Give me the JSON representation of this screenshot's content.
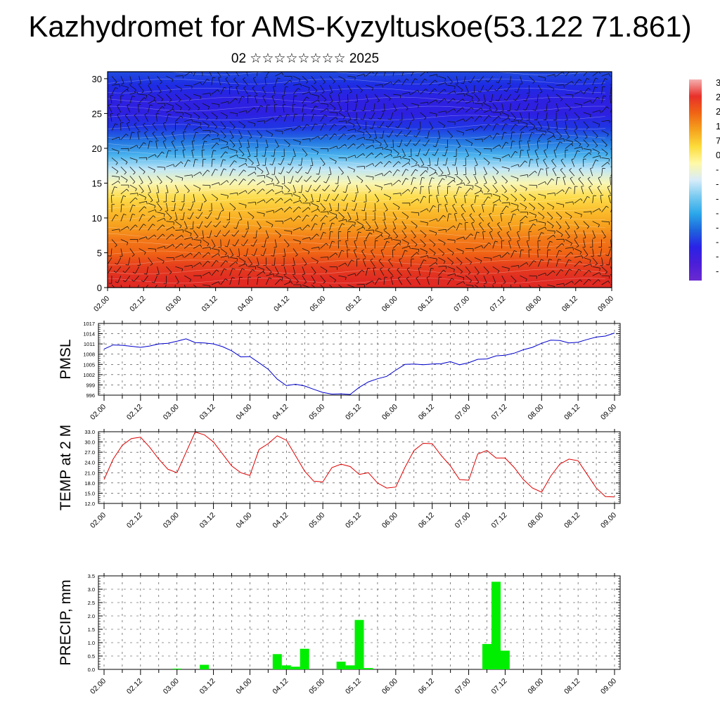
{
  "header": {
    "title": "Kazhydromet for AMS-Kyzyltuskoe(53.122 71.861)",
    "subtitle": "02 ☆☆☆☆☆☆☆☆ 2025"
  },
  "chart_data": [
    {
      "type": "heatmap",
      "title": "",
      "xlabel": "",
      "ylabel": "",
      "ylim": [
        0,
        31
      ],
      "yticks": [
        "0",
        "5",
        "10",
        "15",
        "20",
        "25",
        "30"
      ],
      "xticks": [
        "02.00",
        "02.12",
        "03.00",
        "03.12",
        "04.00",
        "04.12",
        "05.00",
        "05.12",
        "06.00",
        "06.12",
        "07.00",
        "07.12",
        "08.00",
        "08.12",
        "09.00"
      ],
      "y_levels": [
        1,
        3,
        5,
        7,
        9,
        11,
        13,
        15,
        17,
        19,
        21,
        23,
        25,
        27,
        29,
        31
      ],
      "approx_values_by_level": [
        20,
        18,
        14,
        12,
        8,
        5,
        1,
        -5,
        -12,
        -20,
        -26,
        -32,
        -36,
        -36,
        -33,
        -30
      ],
      "colorbar_labels": [
        "3",
        "2",
        "2",
        "1",
        "7",
        "0",
        "-",
        "-",
        "-",
        "-",
        "-",
        "-",
        "-",
        "-"
      ],
      "colorbar_colors": [
        "#f4b0b0",
        "#e8302a",
        "#f06414",
        "#f5a21e",
        "#fcdc3a",
        "#fff9a8",
        "#d8ecfa",
        "#78caf0",
        "#2ba8ea",
        "#1e64dc",
        "#2a22e6",
        "#4b1ed8",
        "#6a2ad0"
      ],
      "overlay": "wind barbs"
    },
    {
      "type": "line",
      "ylabel": "PMSL",
      "ylim": [
        996,
        1017
      ],
      "yticks": [
        "996",
        "999",
        "1002",
        "1005",
        "1008",
        "1011",
        "1014",
        "1017"
      ],
      "xticks": [
        "02.00",
        "02.12",
        "03.00",
        "03.12",
        "04.00",
        "04.12",
        "05.00",
        "05.12",
        "06.00",
        "06.12",
        "07.00",
        "07.12",
        "08.00",
        "08.12",
        "09.00"
      ],
      "x": [
        0,
        3,
        6,
        9,
        12,
        15,
        18,
        21,
        24,
        27,
        30,
        33,
        36,
        39,
        42,
        45,
        48,
        51,
        54,
        57,
        60,
        63,
        66,
        69,
        72,
        75,
        78,
        81,
        84,
        87,
        90,
        93,
        96,
        99,
        102,
        105,
        108,
        111,
        114,
        117,
        120,
        123,
        126,
        129,
        132,
        135,
        138,
        141,
        144,
        147,
        150,
        153,
        156,
        159,
        162,
        165,
        168
      ],
      "series": [
        {
          "color": "#0000cc",
          "values": [
            1009.5,
            1010.7,
            1010.6,
            1010.3,
            1010.0,
            1010.4,
            1011.0,
            1011.2,
            1011.8,
            1012.5,
            1011.4,
            1011.3,
            1011.0,
            1010.2,
            1009.0,
            1007.2,
            1007.3,
            1005.5,
            1003.6,
            1000.7,
            998.8,
            999.2,
            998.7,
            997.7,
            996.8,
            996.3,
            996.4,
            996.2,
            998.3,
            999.9,
            1000.8,
            1001.5,
            1003.3,
            1005.0,
            1005.1,
            1004.9,
            1005.1,
            1005.2,
            1005.8,
            1004.9,
            1005.5,
            1006.5,
            1006.6,
            1007.5,
            1007.7,
            1008.3,
            1009.3,
            1010.0,
            1011.2,
            1012.1,
            1012.0,
            1011.3,
            1011.5,
            1012.3,
            1013.0,
            1013.3,
            1014.2
          ]
        }
      ]
    },
    {
      "type": "line",
      "ylabel": "TEMP at 2 M",
      "ylim": [
        12.0,
        33.0
      ],
      "yticks": [
        "12.0",
        "15.0",
        "18.0",
        "21.0",
        "24.0",
        "27.0",
        "30.0",
        "33.0"
      ],
      "xticks": [
        "02.00",
        "02.12",
        "03.00",
        "03.12",
        "04.00",
        "04.12",
        "05.00",
        "05.12",
        "06.00",
        "06.12",
        "07.00",
        "07.12",
        "08.00",
        "08.12",
        "09.00"
      ],
      "x": [
        0,
        3,
        6,
        9,
        12,
        15,
        18,
        21,
        24,
        27,
        30,
        33,
        36,
        39,
        42,
        45,
        48,
        51,
        54,
        57,
        60,
        63,
        66,
        69,
        72,
        75,
        78,
        81,
        84,
        87,
        90,
        93,
        96,
        99,
        102,
        105,
        108,
        111,
        114,
        117,
        120,
        123,
        126,
        129,
        132,
        135,
        138,
        141,
        144,
        147,
        150,
        153,
        156,
        159,
        162,
        165,
        168
      ],
      "series": [
        {
          "color": "#dd0000",
          "values": [
            19.0,
            25.0,
            29.0,
            31.0,
            31.4,
            28.5,
            25.0,
            22.0,
            21.0,
            27.0,
            32.9,
            32.1,
            30.0,
            26.5,
            23.0,
            21.0,
            20.2,
            27.8,
            29.5,
            31.8,
            30.5,
            26.0,
            21.5,
            18.5,
            18.3,
            22.5,
            23.5,
            22.8,
            20.5,
            21.0,
            18.0,
            16.5,
            16.8,
            22.5,
            27.5,
            29.6,
            29.5,
            26.0,
            23.0,
            19.0,
            18.8,
            26.5,
            27.5,
            25.3,
            25.3,
            22.5,
            19.0,
            16.5,
            15.3,
            20.0,
            23.5,
            25.0,
            24.5,
            20.5,
            16.5,
            14.0,
            13.9
          ]
        }
      ]
    },
    {
      "type": "bar",
      "ylabel": "PRECIP, mm",
      "ylim": [
        0.0,
        3.5
      ],
      "yticks": [
        "0.0",
        "0.5",
        "1.0",
        "1.5",
        "2.0",
        "2.5",
        "3.0",
        "3.5"
      ],
      "xticks": [
        "02.00",
        "02.12",
        "03.00",
        "03.12",
        "04.00",
        "04.12",
        "05.00",
        "05.12",
        "06.00",
        "06.12",
        "07.00",
        "07.12",
        "08.00",
        "08.12",
        "09.00"
      ],
      "bar_hours": [
        24,
        33,
        57,
        60,
        63,
        66,
        78,
        81,
        84,
        87,
        126,
        129,
        132
      ],
      "values": [
        0.03,
        0.17,
        0.57,
        0.15,
        0.1,
        0.77,
        0.29,
        0.15,
        1.85,
        0.05,
        0.95,
        3.28,
        0.7
      ],
      "bar_color": "#00ee00"
    }
  ]
}
